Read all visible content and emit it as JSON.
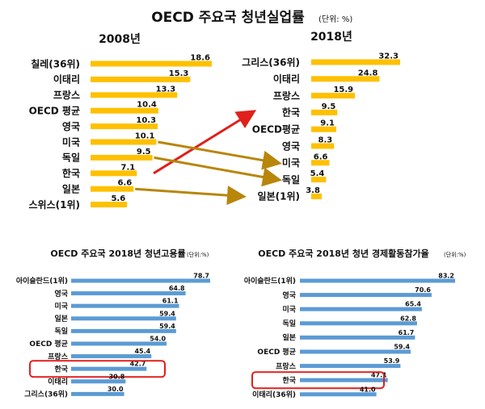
{
  "page": {
    "title": "OECD 주요국 청년실업률",
    "unit": "(단위: %)"
  },
  "chart_data": [
    {
      "type": "bar",
      "orientation": "horizontal",
      "title": "2008년",
      "categories": [
        "칠레(36위)",
        "이태리",
        "프랑스",
        "OECD 평균",
        "영국",
        "미국",
        "독일",
        "한국",
        "일본",
        "스위스(1위)"
      ],
      "values": [
        18.6,
        15.3,
        13.3,
        10.4,
        10.3,
        10.1,
        9.5,
        7.1,
        6.6,
        5.6
      ],
      "value_labels": [
        "18.6",
        "15.3",
        "13.3",
        "10.4",
        "10.3",
        "10.1",
        "9.5",
        "7.1",
        "6.6",
        "5.6"
      ],
      "xlim": [
        0,
        18.6
      ],
      "bar_color": "#FFC000"
    },
    {
      "type": "bar",
      "orientation": "horizontal",
      "title": "2018년",
      "categories": [
        "그리스(36위)",
        "이태리",
        "프랑스",
        "한국",
        "OECD평균",
        "영국",
        "미국",
        "독일",
        "일본(1위)"
      ],
      "values": [
        32.3,
        24.8,
        15.9,
        9.5,
        9.1,
        8.3,
        6.6,
        5.4,
        3.8
      ],
      "value_labels": [
        "32.3",
        "24.8",
        "15.9",
        "9.5",
        "9.1",
        "8.3",
        "6.6",
        "5.4",
        "3.8"
      ],
      "xlim": [
        0,
        32.3
      ],
      "bar_color": "#FFC000"
    },
    {
      "type": "bar",
      "orientation": "horizontal",
      "title": "OECD 주요국 2018년 청년고용률",
      "unit": "(단위:%)",
      "categories": [
        "아이슬란드(1위)",
        "영국",
        "미국",
        "일본",
        "독일",
        "OECD 평균",
        "프랑스",
        "한국",
        "이태리",
        "그리스(36위)"
      ],
      "values": [
        78.7,
        64.8,
        61.1,
        59.4,
        59.4,
        54.0,
        45.4,
        42.7,
        30.8,
        30.0
      ],
      "value_labels": [
        "78.7",
        "64.8",
        "61.1",
        "59.4",
        "59.4",
        "54.0",
        "45.4",
        "42.7",
        "30.8",
        "30.0"
      ],
      "xlim": [
        0,
        78.7
      ],
      "bar_color": "#5B9BD5",
      "highlight": "한국"
    },
    {
      "type": "bar",
      "orientation": "horizontal",
      "title": "OECD 주요국 2018년 청년 경제활동참가율",
      "unit": "(단위:%)",
      "categories": [
        "아이슬란드(1위)",
        "영국",
        "미국",
        "독일",
        "일본",
        "OECD 평균",
        "프랑스",
        "한국",
        "이태리(36위)"
      ],
      "values": [
        83.2,
        70.6,
        65.4,
        62.8,
        61.7,
        59.4,
        53.9,
        47.1,
        41.0
      ],
      "value_labels": [
        "83.2",
        "70.6",
        "65.4",
        "62.8",
        "61.7",
        "59.4",
        "53.9",
        "47.1",
        "41.0"
      ],
      "xlim": [
        0,
        83.2
      ],
      "bar_color": "#5B9BD5",
      "highlight": "한국"
    }
  ],
  "arrows": [
    {
      "from": "한국",
      "to": "한국",
      "color": "#E0201B"
    },
    {
      "from": "미국",
      "to": "미국",
      "color": "#B8860B"
    },
    {
      "from": "독일",
      "to": "독일",
      "color": "#B8860B"
    },
    {
      "from": "일본",
      "to": "일본(1위)",
      "color": "#B8860B"
    }
  ],
  "colors": {
    "highlight_box": "#E0201B",
    "text": "#111111"
  }
}
